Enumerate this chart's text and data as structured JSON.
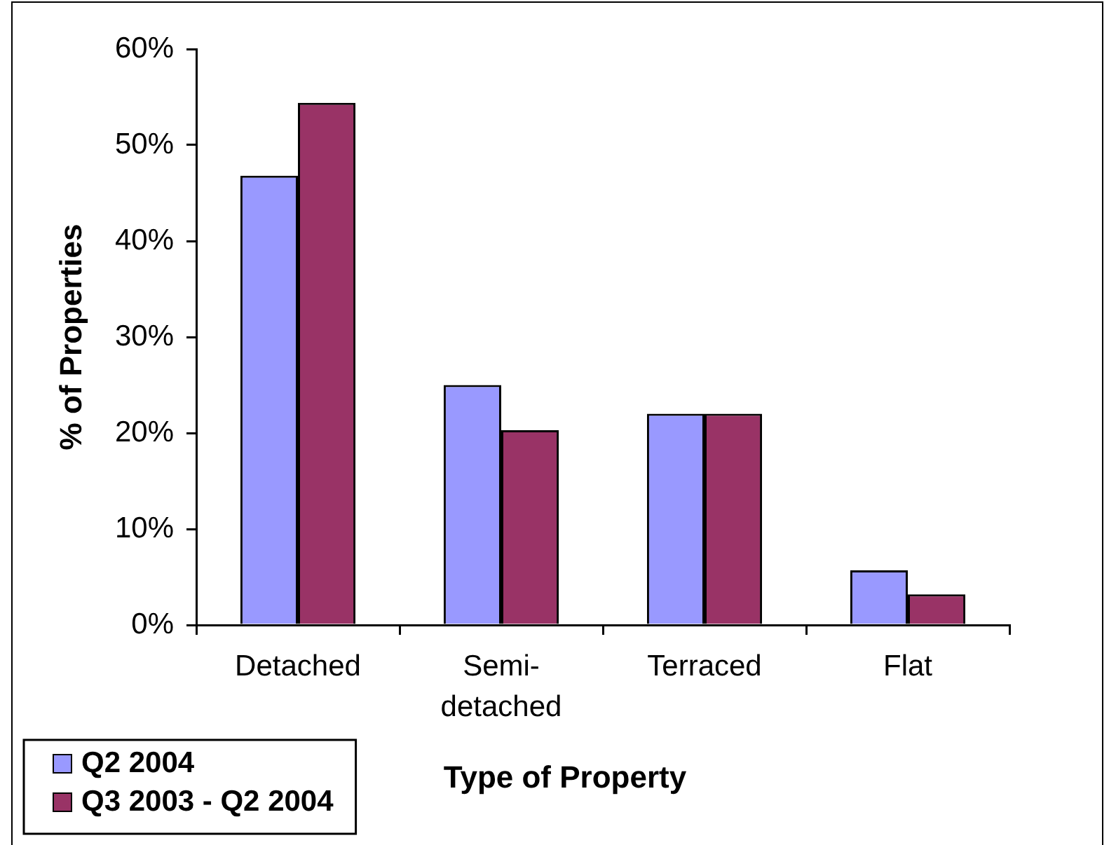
{
  "chart_data": {
    "type": "bar",
    "xlabel": "Type of Property",
    "ylabel": "% of Properties",
    "categories": [
      "Detached",
      "Semi-detached",
      "Terraced",
      "Flat"
    ],
    "series": [
      {
        "name": "Q2 2004",
        "color": "#9999ff",
        "values": [
          46.8,
          25.0,
          22.0,
          5.7
        ]
      },
      {
        "name": "Q3 2003 - Q2 2004",
        "color": "#993366",
        "values": [
          54.4,
          20.3,
          22.0,
          3.2
        ]
      }
    ],
    "ylim": [
      0,
      60
    ],
    "yticks": [
      {
        "value": 0,
        "label": "0%"
      },
      {
        "value": 10,
        "label": "10%"
      },
      {
        "value": 20,
        "label": "20%"
      },
      {
        "value": 30,
        "label": "30%"
      },
      {
        "value": 40,
        "label": "40%"
      },
      {
        "value": 50,
        "label": "50%"
      },
      {
        "value": 60,
        "label": "60%"
      }
    ],
    "legend": "bottom left"
  }
}
